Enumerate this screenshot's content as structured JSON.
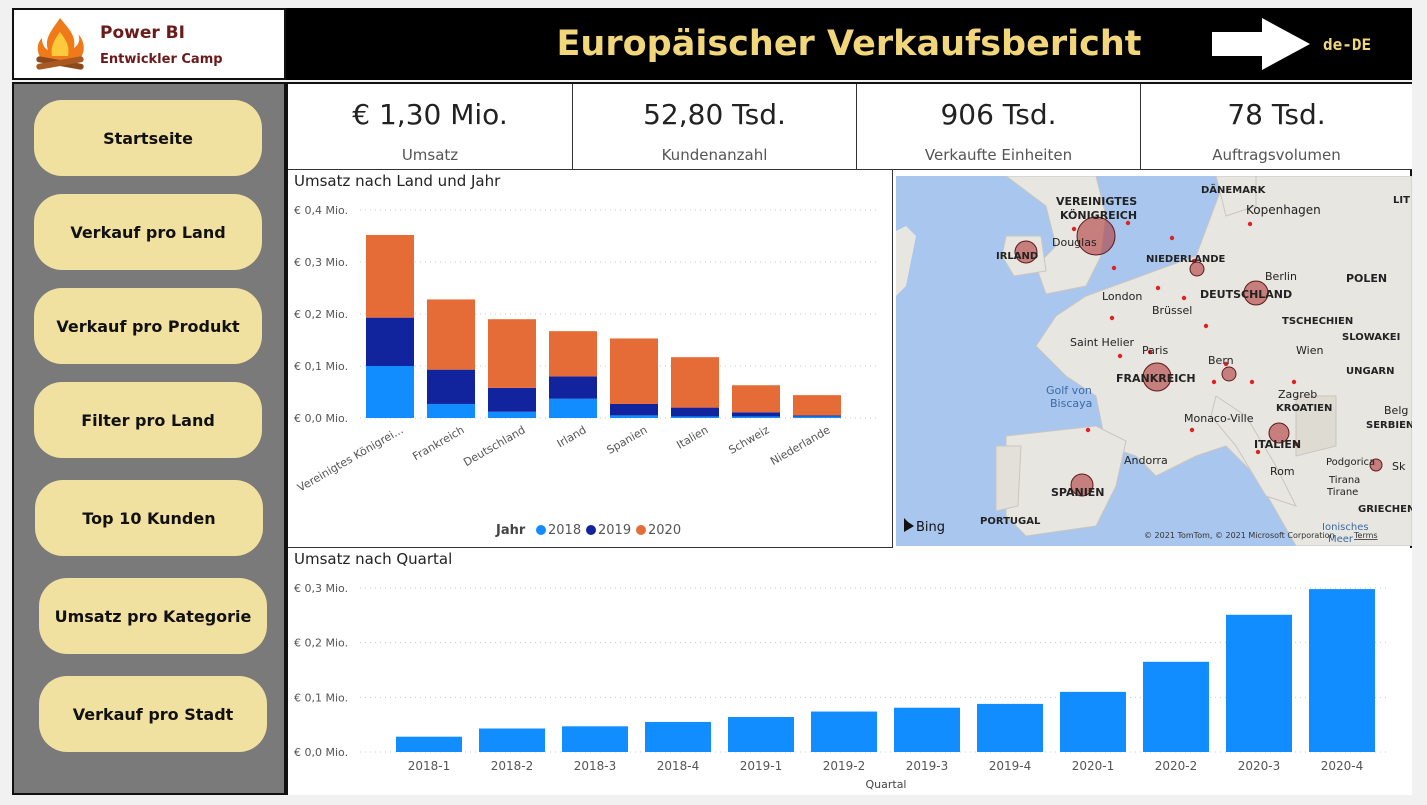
{
  "logo": {
    "title": "Power BI",
    "subtitle": "Entwickler Camp",
    "icon": "campfire-icon"
  },
  "header": {
    "title": "Europäischer Verkaufsbericht",
    "locale": "de-DE",
    "arrow_icon": "arrow-right-icon"
  },
  "nav": [
    {
      "label": "Startseite"
    },
    {
      "label": "Verkauf pro Land"
    },
    {
      "label": "Verkauf pro Produkt"
    },
    {
      "label": "Filter pro Land"
    },
    {
      "label": "Top 10 Kunden"
    },
    {
      "label": "Umsatz pro Kategorie"
    },
    {
      "label": "Verkauf pro Stadt"
    }
  ],
  "kpis": [
    {
      "value": "€ 1,30 Mio.",
      "label": "Umsatz"
    },
    {
      "value": "52,80 Tsd.",
      "label": "Kundenanzahl"
    },
    {
      "value": "906 Tsd.",
      "label": "Verkaufte Einheiten"
    },
    {
      "value": "78 Tsd.",
      "label": "Auftragsvolumen"
    }
  ],
  "colors": {
    "y2018": "#118dff",
    "y2019": "#12239e",
    "y2020": "#e66c37",
    "bubble": "#b03a3a"
  },
  "chart_data": [
    {
      "type": "bar",
      "stacked": true,
      "title": "Umsatz nach Land und Jahr",
      "categories": [
        "Vereinigtes Königrei...",
        "Frankreich",
        "Deutschland",
        "Irland",
        "Spanien",
        "Italien",
        "Schweiz",
        "Niederlande"
      ],
      "series": [
        {
          "name": "2018",
          "values": [
            0.1,
            0.027,
            0.012,
            0.037,
            0.005,
            0.003,
            0.003,
            0.003
          ]
        },
        {
          "name": "2019",
          "values": [
            0.093,
            0.066,
            0.046,
            0.043,
            0.022,
            0.017,
            0.008,
            0.002
          ]
        },
        {
          "name": "2020",
          "values": [
            0.159,
            0.135,
            0.132,
            0.087,
            0.126,
            0.097,
            0.052,
            0.039
          ]
        }
      ],
      "legend_title": "Jahr",
      "legend_position": "bottom",
      "ylim": [
        0,
        0.4
      ],
      "yticks": [
        "€ 0,0 Mio.",
        "€ 0,1 Mio.",
        "€ 0,2 Mio.",
        "€ 0,3 Mio.",
        "€ 0,4 Mio."
      ],
      "grid": true
    },
    {
      "type": "bar",
      "title": "Umsatz nach Quartal",
      "xlabel": "Quartal",
      "categories": [
        "2018-1",
        "2018-2",
        "2018-3",
        "2018-4",
        "2019-1",
        "2019-2",
        "2019-3",
        "2019-4",
        "2020-1",
        "2020-2",
        "2020-3",
        "2020-4"
      ],
      "values": [
        0.028,
        0.043,
        0.047,
        0.055,
        0.064,
        0.074,
        0.081,
        0.088,
        0.11,
        0.165,
        0.251,
        0.298
      ],
      "ylim": [
        0,
        0.3
      ],
      "yticks": [
        "€ 0,0 Mio.",
        "€ 0,1 Mio.",
        "€ 0,2 Mio.",
        "€ 0,3 Mio."
      ],
      "grid": true
    }
  ],
  "map": {
    "country_labels": [
      "VEREINIGTES",
      "KÖNIGREICH",
      "IRLAND",
      "NIEDERLANDE",
      "DEUTSCHLAND",
      "FRANKREICH",
      "SPANIEN",
      "PORTUGAL",
      "ITALIEN",
      "KROATIEN",
      "SERBIEN",
      "UNGARN",
      "SLOWAKEI",
      "TSCHECHIEN",
      "POLEN",
      "DÄNEMARK",
      "GRIECHEN",
      "LIT"
    ],
    "city_labels": [
      "Douglas",
      "Kopenhagen",
      "Berlin",
      "London",
      "Brüssel",
      "Paris",
      "Saint Helier",
      "Bern",
      "Wien",
      "Zagreb",
      "Monaco-Ville",
      "Andorra",
      "Rom",
      "Podgorica",
      "Tirana",
      "Tirane",
      "Belg",
      "Sk"
    ],
    "sea_labels": [
      "Golf von",
      "Biscaya",
      "Ionisches",
      "Meer"
    ],
    "brand": "Bing",
    "copyright": "© 2021 TomTom, © 2021 Microsoft Corporation",
    "terms": "Terms"
  }
}
